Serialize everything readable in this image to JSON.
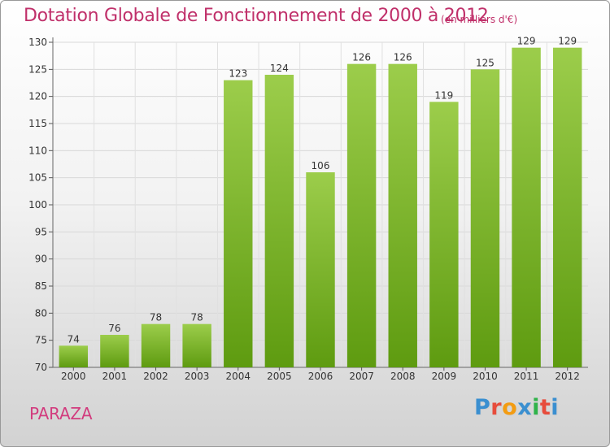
{
  "title": "Dotation Globale de Fonctionnement de 2000 à 2012",
  "units": "(en milliers d'€)",
  "city": "PARAZA",
  "logo": {
    "letters": [
      "P",
      "r",
      "o",
      "x",
      "i",
      "t",
      "i"
    ],
    "colors": [
      "#3a8fd0",
      "#e74c3c",
      "#f39c12",
      "#3a8fd0",
      "#2fb34a",
      "#e74c3c",
      "#3a8fd0"
    ]
  },
  "colors": {
    "bar_top": "#9ccd4b",
    "bar_bottom": "#5e9b10",
    "title": "#c0306a"
  },
  "chart_data": {
    "type": "bar",
    "categories": [
      "2000",
      "2001",
      "2002",
      "2003",
      "2004",
      "2005",
      "2006",
      "2007",
      "2008",
      "2009",
      "2010",
      "2011",
      "2012"
    ],
    "values": [
      74,
      76,
      78,
      78,
      123,
      124,
      106,
      126,
      126,
      119,
      125,
      129,
      129
    ],
    "ylim": [
      70,
      130
    ],
    "yticks": [
      70,
      75,
      80,
      85,
      90,
      95,
      100,
      105,
      110,
      115,
      120,
      125,
      130
    ],
    "grid": true
  }
}
